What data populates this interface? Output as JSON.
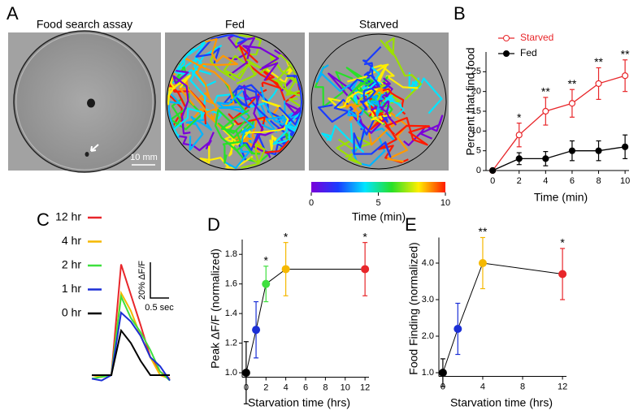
{
  "panels": {
    "A": "A",
    "B": "B",
    "C": "C",
    "D": "D",
    "E": "E"
  },
  "panel_a": {
    "titles": [
      "Food search assay",
      "Fed",
      "Starved"
    ],
    "scale_bar": "10 mm",
    "colorbar": {
      "label": "Time (min)",
      "lim": [
        0,
        10
      ],
      "ticks": [
        0,
        5,
        10
      ]
    }
  },
  "chart_data": [
    {
      "type": "line",
      "x_label": "Time (min)",
      "y_label": "Percent that find food",
      "x": [
        0,
        2,
        4,
        6,
        8,
        10
      ],
      "xlim": [
        -0.5,
        10.3
      ],
      "xticks": [
        0,
        2,
        4,
        6,
        8,
        10
      ],
      "ylim": [
        0,
        30
      ],
      "yticks": [
        0,
        5,
        10,
        15,
        20,
        25
      ],
      "legend": "top-left",
      "series": [
        {
          "name": "Starved",
          "color": "#e8262a",
          "filled": false,
          "values": [
            0,
            9,
            15,
            17,
            22,
            24
          ],
          "errors": [
            0,
            3,
            3.5,
            3.5,
            4,
            4
          ]
        },
        {
          "name": "Fed",
          "color": "#000000",
          "filled": true,
          "values": [
            0,
            3,
            3,
            5,
            5,
            6
          ],
          "errors": [
            0,
            1.5,
            1.8,
            2.5,
            2.5,
            3
          ]
        }
      ],
      "significance": [
        null,
        "*",
        "**",
        "**",
        "**",
        "**"
      ]
    },
    {
      "type": "line",
      "series": [
        {
          "name": "12 hr",
          "color": "#e8262a",
          "values": [
            0,
            -1,
            0,
            62,
            45,
            28,
            10,
            2,
            -2
          ]
        },
        {
          "name": "4 hr",
          "color": "#f5b800",
          "values": [
            0,
            -1,
            0,
            46,
            36,
            22,
            10,
            0,
            -2
          ]
        },
        {
          "name": "2 hr",
          "color": "#3ee03e",
          "values": [
            -2,
            -1,
            0,
            44,
            32,
            24,
            14,
            2,
            -3
          ]
        },
        {
          "name": "1 hr",
          "color": "#1b2fd6",
          "values": [
            -2,
            -3,
            0,
            35,
            30,
            22,
            10,
            5,
            -3
          ]
        },
        {
          "name": "0 hr",
          "color": "#000000",
          "values": [
            0,
            0,
            0,
            25,
            18,
            8,
            0,
            0,
            0
          ]
        }
      ],
      "scale_bar": {
        "y": "20% ΔF/F",
        "x": "0.5 sec"
      }
    },
    {
      "type": "scatter",
      "x_label": "Starvation time (hrs)",
      "y_label": "Peak ΔF/F (normalized)",
      "x": [
        0,
        1,
        2,
        4,
        12
      ],
      "values": [
        1.0,
        1.29,
        1.6,
        1.7,
        1.7
      ],
      "errors": [
        0.21,
        0.19,
        0.12,
        0.18,
        0.18
      ],
      "colors": [
        "#000000",
        "#1b2fd6",
        "#3ee03e",
        "#f5b800",
        "#e8262a"
      ],
      "xlim": [
        -0.4,
        12.4
      ],
      "xticks": [
        0,
        2,
        4,
        6,
        8,
        10,
        12
      ],
      "ylim": [
        0.97,
        1.9
      ],
      "yticks": [
        {
          "value": 1,
          "label": "1.0"
        },
        1.2,
        1.4,
        1.6,
        1.8
      ],
      "significance": [
        null,
        null,
        "*",
        "*",
        "*"
      ]
    },
    {
      "type": "scatter",
      "x_label": "Starvation time (hrs)",
      "y_label": "Food Finding (normalized)",
      "x": [
        0,
        1.5,
        4,
        12
      ],
      "values": [
        1.0,
        2.2,
        4.0,
        3.7
      ],
      "errors": [
        0.38,
        0.7,
        0.7,
        0.7
      ],
      "colors": [
        "#000000",
        "#1b2fd6",
        "#f5b800",
        "#e8262a"
      ],
      "xlim": [
        -0.4,
        12.4
      ],
      "xticks": [
        0,
        4,
        8,
        12
      ],
      "ylim": [
        0.9,
        4.7
      ],
      "yticks": [
        {
          "value": 1,
          "label": "1.0"
        },
        {
          "value": 2,
          "label": "2.0"
        },
        {
          "value": 3,
          "label": "3.0"
        },
        {
          "value": 4,
          "label": "4.0"
        }
      ],
      "significance": [
        null,
        null,
        "**",
        "*"
      ]
    }
  ]
}
